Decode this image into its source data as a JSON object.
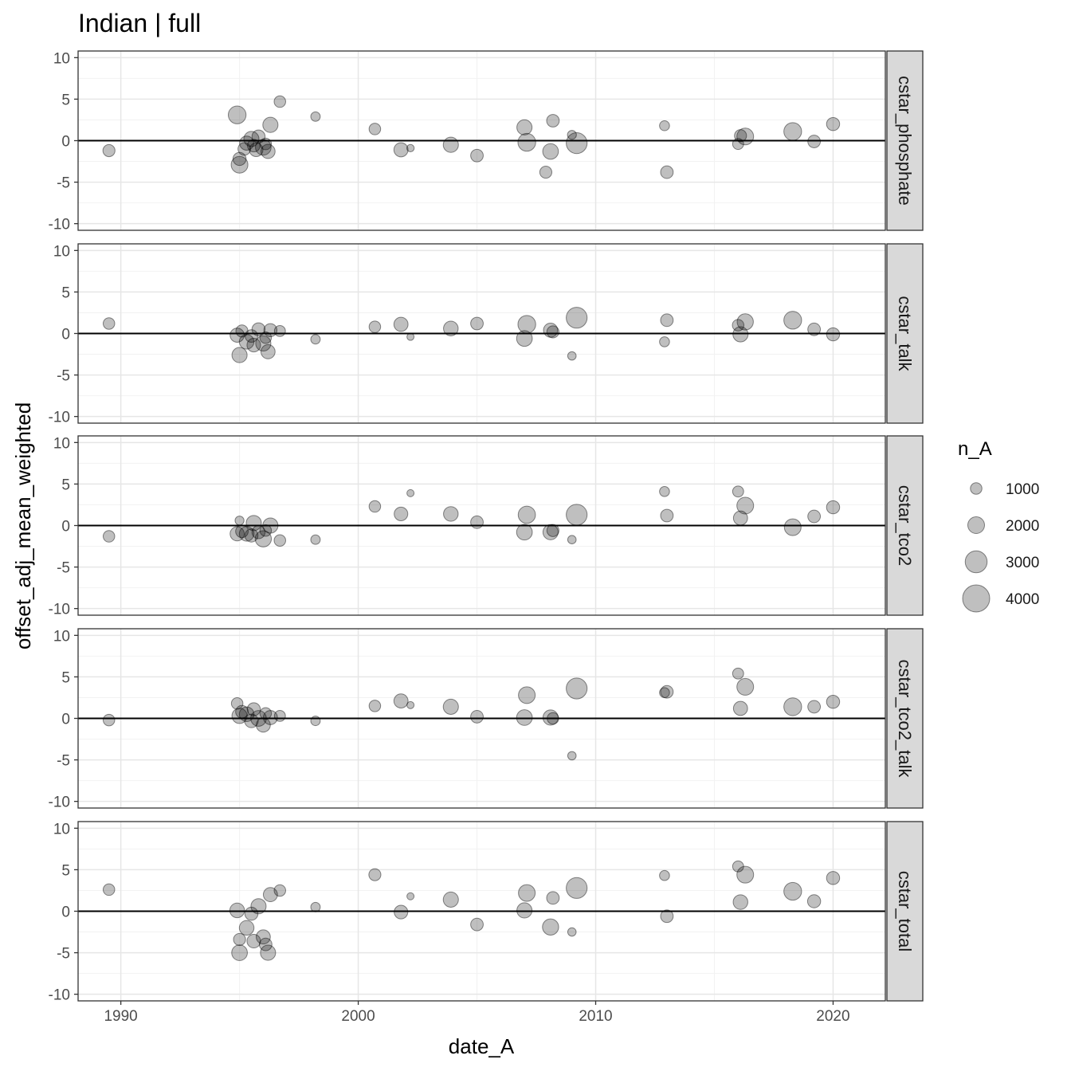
{
  "chart_data": {
    "type": "scatter",
    "title": "Indian | full",
    "xlabel": "date_A",
    "ylabel": "offset_adj_mean_weighted",
    "xlim": [
      1988.2,
      2022.2
    ],
    "ylim": [
      -10.8,
      10.8
    ],
    "xticks": [
      1990,
      2000,
      2010,
      2020
    ],
    "xtick_labels": [
      "1990",
      "2000",
      "2010",
      "2020"
    ],
    "yticks": [
      10,
      5,
      0,
      -5,
      -10
    ],
    "ytick_labels": [
      "10",
      "5",
      "0",
      "-5",
      "-10"
    ],
    "hline": 0,
    "size_var": "n_A",
    "legend": {
      "title": "n_A",
      "entries": [
        {
          "label": "1000",
          "value": 1000
        },
        {
          "label": "2000",
          "value": 2000
        },
        {
          "label": "3000",
          "value": 3000
        },
        {
          "label": "4000",
          "value": 4000
        }
      ]
    },
    "panels": [
      {
        "label": "cstar_phosphate",
        "points": [
          {
            "x": 1989.5,
            "y": -1.2,
            "n": 1100
          },
          {
            "x": 1994.9,
            "y": 3.1,
            "n": 2200
          },
          {
            "x": 1995.0,
            "y": -2.2,
            "n": 1300
          },
          {
            "x": 1995.0,
            "y": -2.9,
            "n": 2000
          },
          {
            "x": 1995.2,
            "y": -1.0,
            "n": 1200
          },
          {
            "x": 1995.3,
            "y": -0.3,
            "n": 1500
          },
          {
            "x": 1995.5,
            "y": 0.2,
            "n": 1700
          },
          {
            "x": 1995.6,
            "y": -0.6,
            "n": 1200
          },
          {
            "x": 1995.7,
            "y": -1.1,
            "n": 1400
          },
          {
            "x": 1995.8,
            "y": 0.5,
            "n": 1300
          },
          {
            "x": 1996.0,
            "y": -0.8,
            "n": 1800
          },
          {
            "x": 1996.1,
            "y": -0.4,
            "n": 1000
          },
          {
            "x": 1996.2,
            "y": -1.3,
            "n": 1500
          },
          {
            "x": 1996.3,
            "y": 1.9,
            "n": 1700
          },
          {
            "x": 1996.7,
            "y": 4.7,
            "n": 1000
          },
          {
            "x": 1998.2,
            "y": 2.9,
            "n": 600
          },
          {
            "x": 2000.7,
            "y": 1.4,
            "n": 1000
          },
          {
            "x": 2001.8,
            "y": -1.1,
            "n": 1500
          },
          {
            "x": 2002.2,
            "y": -0.9,
            "n": 200
          },
          {
            "x": 2003.9,
            "y": -0.5,
            "n": 1700
          },
          {
            "x": 2005.0,
            "y": -1.8,
            "n": 1200
          },
          {
            "x": 2007.0,
            "y": 1.6,
            "n": 1700
          },
          {
            "x": 2007.1,
            "y": -0.2,
            "n": 2200
          },
          {
            "x": 2007.9,
            "y": -3.8,
            "n": 1100
          },
          {
            "x": 2008.1,
            "y": -1.3,
            "n": 1800
          },
          {
            "x": 2008.2,
            "y": 2.4,
            "n": 1200
          },
          {
            "x": 2009.0,
            "y": 0.7,
            "n": 500
          },
          {
            "x": 2009.2,
            "y": -0.3,
            "n": 2800
          },
          {
            "x": 2012.9,
            "y": 1.8,
            "n": 700
          },
          {
            "x": 2013.0,
            "y": -3.8,
            "n": 1200
          },
          {
            "x": 2016.0,
            "y": -0.4,
            "n": 900
          },
          {
            "x": 2016.1,
            "y": 0.6,
            "n": 1100
          },
          {
            "x": 2016.3,
            "y": 0.5,
            "n": 2000
          },
          {
            "x": 2018.3,
            "y": 1.1,
            "n": 2200
          },
          {
            "x": 2019.2,
            "y": -0.1,
            "n": 1200
          },
          {
            "x": 2020.0,
            "y": 2.0,
            "n": 1300
          }
        ]
      },
      {
        "label": "cstar_talk",
        "points": [
          {
            "x": 1989.5,
            "y": 1.2,
            "n": 1000
          },
          {
            "x": 1994.9,
            "y": -0.2,
            "n": 1500
          },
          {
            "x": 1995.0,
            "y": -2.6,
            "n": 1700
          },
          {
            "x": 1995.1,
            "y": 0.3,
            "n": 1100
          },
          {
            "x": 1995.3,
            "y": -1.0,
            "n": 1600
          },
          {
            "x": 1995.5,
            "y": -0.3,
            "n": 1200
          },
          {
            "x": 1995.6,
            "y": -1.4,
            "n": 1400
          },
          {
            "x": 1995.8,
            "y": 0.5,
            "n": 1300
          },
          {
            "x": 1996.0,
            "y": -1.2,
            "n": 1700
          },
          {
            "x": 1996.1,
            "y": -0.5,
            "n": 1000
          },
          {
            "x": 1996.2,
            "y": -2.2,
            "n": 1500
          },
          {
            "x": 1996.3,
            "y": 0.4,
            "n": 1300
          },
          {
            "x": 1996.7,
            "y": 0.3,
            "n": 900
          },
          {
            "x": 1998.2,
            "y": -0.7,
            "n": 600
          },
          {
            "x": 2000.7,
            "y": 0.8,
            "n": 1000
          },
          {
            "x": 2001.8,
            "y": 1.1,
            "n": 1500
          },
          {
            "x": 2002.2,
            "y": -0.4,
            "n": 150
          },
          {
            "x": 2003.9,
            "y": 0.6,
            "n": 1600
          },
          {
            "x": 2005.0,
            "y": 1.2,
            "n": 1200
          },
          {
            "x": 2007.0,
            "y": -0.6,
            "n": 1800
          },
          {
            "x": 2007.1,
            "y": 1.1,
            "n": 2200
          },
          {
            "x": 2008.1,
            "y": 0.4,
            "n": 1500
          },
          {
            "x": 2008.2,
            "y": 0.2,
            "n": 1100
          },
          {
            "x": 2009.0,
            "y": -2.7,
            "n": 400
          },
          {
            "x": 2009.2,
            "y": 1.9,
            "n": 2800
          },
          {
            "x": 2012.9,
            "y": -1.0,
            "n": 700
          },
          {
            "x": 2013.0,
            "y": 1.6,
            "n": 1200
          },
          {
            "x": 2016.0,
            "y": 1.0,
            "n": 1000
          },
          {
            "x": 2016.1,
            "y": -0.1,
            "n": 1700
          },
          {
            "x": 2016.3,
            "y": 1.4,
            "n": 1900
          },
          {
            "x": 2018.3,
            "y": 1.6,
            "n": 2200
          },
          {
            "x": 2019.2,
            "y": 0.5,
            "n": 1200
          },
          {
            "x": 2020.0,
            "y": -0.1,
            "n": 1300
          }
        ]
      },
      {
        "label": "cstar_tco2",
        "points": [
          {
            "x": 1989.5,
            "y": -1.3,
            "n": 1000
          },
          {
            "x": 1994.9,
            "y": -1.0,
            "n": 1500
          },
          {
            "x": 1995.0,
            "y": 0.6,
            "n": 500
          },
          {
            "x": 1995.1,
            "y": -0.7,
            "n": 1200
          },
          {
            "x": 1995.3,
            "y": -1.0,
            "n": 1600
          },
          {
            "x": 1995.5,
            "y": -1.2,
            "n": 1300
          },
          {
            "x": 1995.6,
            "y": 0.3,
            "n": 1700
          },
          {
            "x": 1995.8,
            "y": -0.8,
            "n": 1300
          },
          {
            "x": 1996.0,
            "y": -1.6,
            "n": 1900
          },
          {
            "x": 1996.1,
            "y": -0.6,
            "n": 1000
          },
          {
            "x": 1996.3,
            "y": 0.0,
            "n": 1700
          },
          {
            "x": 1996.7,
            "y": -1.8,
            "n": 1000
          },
          {
            "x": 1998.2,
            "y": -1.7,
            "n": 600
          },
          {
            "x": 2000.7,
            "y": 2.3,
            "n": 1000
          },
          {
            "x": 2001.8,
            "y": 1.4,
            "n": 1400
          },
          {
            "x": 2002.2,
            "y": 3.9,
            "n": 150
          },
          {
            "x": 2003.9,
            "y": 1.4,
            "n": 1600
          },
          {
            "x": 2005.0,
            "y": 0.4,
            "n": 1200
          },
          {
            "x": 2007.0,
            "y": -0.8,
            "n": 1800
          },
          {
            "x": 2007.1,
            "y": 1.3,
            "n": 2100
          },
          {
            "x": 2008.1,
            "y": -0.8,
            "n": 1700
          },
          {
            "x": 2008.2,
            "y": -0.6,
            "n": 1100
          },
          {
            "x": 2009.0,
            "y": -1.7,
            "n": 400
          },
          {
            "x": 2009.2,
            "y": 1.3,
            "n": 2800
          },
          {
            "x": 2012.9,
            "y": 4.1,
            "n": 700
          },
          {
            "x": 2013.0,
            "y": 1.2,
            "n": 1200
          },
          {
            "x": 2016.0,
            "y": 4.1,
            "n": 900
          },
          {
            "x": 2016.1,
            "y": 0.9,
            "n": 1500
          },
          {
            "x": 2016.3,
            "y": 2.4,
            "n": 2000
          },
          {
            "x": 2018.3,
            "y": -0.2,
            "n": 2000
          },
          {
            "x": 2019.2,
            "y": 1.1,
            "n": 1200
          },
          {
            "x": 2020.0,
            "y": 2.2,
            "n": 1300
          }
        ]
      },
      {
        "label": "cstar_tco2_talk",
        "points": [
          {
            "x": 1989.5,
            "y": -0.2,
            "n": 1000
          },
          {
            "x": 1994.9,
            "y": 1.8,
            "n": 1000
          },
          {
            "x": 1995.0,
            "y": 0.3,
            "n": 1700
          },
          {
            "x": 1995.1,
            "y": 0.8,
            "n": 1200
          },
          {
            "x": 1995.3,
            "y": 0.5,
            "n": 1600
          },
          {
            "x": 1995.5,
            "y": -0.3,
            "n": 1400
          },
          {
            "x": 1995.6,
            "y": 1.1,
            "n": 1300
          },
          {
            "x": 1995.8,
            "y": 0.0,
            "n": 1800
          },
          {
            "x": 1996.0,
            "y": -0.8,
            "n": 1500
          },
          {
            "x": 1996.1,
            "y": 0.6,
            "n": 1000
          },
          {
            "x": 1996.3,
            "y": 0.1,
            "n": 1500
          },
          {
            "x": 1996.7,
            "y": 0.3,
            "n": 900
          },
          {
            "x": 1998.2,
            "y": -0.3,
            "n": 600
          },
          {
            "x": 2000.7,
            "y": 1.5,
            "n": 1000
          },
          {
            "x": 2001.8,
            "y": 2.1,
            "n": 1500
          },
          {
            "x": 2002.2,
            "y": 1.6,
            "n": 150
          },
          {
            "x": 2003.9,
            "y": 1.4,
            "n": 1700
          },
          {
            "x": 2005.0,
            "y": 0.2,
            "n": 1200
          },
          {
            "x": 2007.0,
            "y": 0.1,
            "n": 1800
          },
          {
            "x": 2007.1,
            "y": 2.8,
            "n": 2000
          },
          {
            "x": 2008.1,
            "y": 0.1,
            "n": 1700
          },
          {
            "x": 2008.2,
            "y": 0.0,
            "n": 1000
          },
          {
            "x": 2009.0,
            "y": -4.5,
            "n": 400
          },
          {
            "x": 2009.2,
            "y": 3.6,
            "n": 2800
          },
          {
            "x": 2012.9,
            "y": 3.1,
            "n": 700
          },
          {
            "x": 2013.0,
            "y": 3.2,
            "n": 1200
          },
          {
            "x": 2016.0,
            "y": 5.4,
            "n": 900
          },
          {
            "x": 2016.1,
            "y": 1.2,
            "n": 1500
          },
          {
            "x": 2016.3,
            "y": 3.8,
            "n": 2000
          },
          {
            "x": 2018.3,
            "y": 1.4,
            "n": 2200
          },
          {
            "x": 2019.2,
            "y": 1.4,
            "n": 1200
          },
          {
            "x": 2020.0,
            "y": 2.0,
            "n": 1300
          }
        ]
      },
      {
        "label": "cstar_total",
        "points": [
          {
            "x": 1989.5,
            "y": 2.6,
            "n": 1000
          },
          {
            "x": 1994.9,
            "y": 0.1,
            "n": 1600
          },
          {
            "x": 1995.0,
            "y": -3.4,
            "n": 1100
          },
          {
            "x": 1995.0,
            "y": -5.0,
            "n": 1800
          },
          {
            "x": 1995.3,
            "y": -2.0,
            "n": 1600
          },
          {
            "x": 1995.5,
            "y": -0.3,
            "n": 1300
          },
          {
            "x": 1995.6,
            "y": -3.6,
            "n": 1400
          },
          {
            "x": 1995.8,
            "y": 0.6,
            "n": 1700
          },
          {
            "x": 1996.0,
            "y": -3.1,
            "n": 1500
          },
          {
            "x": 1996.1,
            "y": -4.0,
            "n": 1200
          },
          {
            "x": 1996.2,
            "y": -5.0,
            "n": 1700
          },
          {
            "x": 1996.3,
            "y": 2.0,
            "n": 1500
          },
          {
            "x": 1996.7,
            "y": 2.5,
            "n": 1000
          },
          {
            "x": 1998.2,
            "y": 0.5,
            "n": 600
          },
          {
            "x": 2000.7,
            "y": 4.4,
            "n": 1100
          },
          {
            "x": 2001.8,
            "y": -0.1,
            "n": 1400
          },
          {
            "x": 2002.2,
            "y": 1.8,
            "n": 150
          },
          {
            "x": 2003.9,
            "y": 1.4,
            "n": 1700
          },
          {
            "x": 2005.0,
            "y": -1.6,
            "n": 1200
          },
          {
            "x": 2007.0,
            "y": 0.1,
            "n": 1700
          },
          {
            "x": 2007.1,
            "y": 2.2,
            "n": 2000
          },
          {
            "x": 2008.1,
            "y": -1.9,
            "n": 1900
          },
          {
            "x": 2008.2,
            "y": 1.6,
            "n": 1200
          },
          {
            "x": 2009.0,
            "y": -2.5,
            "n": 400
          },
          {
            "x": 2009.2,
            "y": 2.8,
            "n": 2800
          },
          {
            "x": 2012.9,
            "y": 4.3,
            "n": 700
          },
          {
            "x": 2013.0,
            "y": -0.6,
            "n": 1200
          },
          {
            "x": 2016.0,
            "y": 5.4,
            "n": 900
          },
          {
            "x": 2016.1,
            "y": 1.1,
            "n": 1600
          },
          {
            "x": 2016.3,
            "y": 4.4,
            "n": 2000
          },
          {
            "x": 2018.3,
            "y": 2.4,
            "n": 2200
          },
          {
            "x": 2019.2,
            "y": 1.2,
            "n": 1300
          },
          {
            "x": 2020.0,
            "y": 4.0,
            "n": 1300
          }
        ]
      }
    ]
  }
}
